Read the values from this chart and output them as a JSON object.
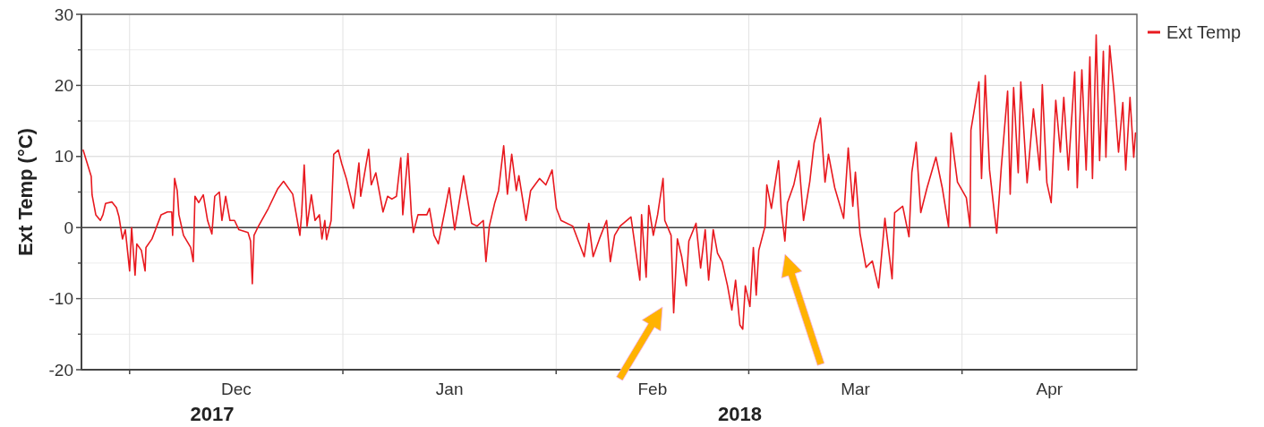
{
  "chart_data": {
    "type": "line",
    "ylabel": "Ext Temp (°C)",
    "x": [
      "2017-11-24T06:00",
      "2017-11-25T10:00",
      "2017-11-25T13:00",
      "2017-11-26T02:00",
      "2017-11-26T18:00",
      "2017-11-27T03:00",
      "2017-11-27T12:00",
      "2017-11-28T10:00",
      "2017-11-29T02:00",
      "2017-11-29T11:00",
      "2017-11-29T23:00",
      "2017-11-30T09:00",
      "2017-12-01T00:00",
      "2017-12-01T07:00",
      "2017-12-01T19:00",
      "2017-12-02T01:00",
      "2017-12-02T17:00",
      "2017-12-03T06:00",
      "2017-12-03T09:00",
      "2017-12-04T06:00",
      "2017-12-05T14:00",
      "2017-12-06T12:00",
      "2017-12-07T03:00",
      "2017-12-07T06:00",
      "2017-12-07T13:00",
      "2017-12-07T22:00",
      "2017-12-08T04:00",
      "2017-12-08T20:00",
      "2017-12-09T21:00",
      "2017-12-10T06:00",
      "2017-12-10T12:00",
      "2017-12-11T01:00",
      "2017-12-11T17:00",
      "2017-12-12T08:00",
      "2017-12-12T23:00",
      "2017-12-13T09:00",
      "2017-12-14T01:00",
      "2017-12-14T10:00",
      "2017-12-14T23:00",
      "2017-12-15T14:00",
      "2017-12-16T06:00",
      "2017-12-16T21:00",
      "2017-12-18T05:00",
      "2017-12-18T14:00",
      "2017-12-18T20:00",
      "2017-12-19T02:00",
      "2017-12-19T15:00",
      "2017-12-21T04:00",
      "2017-12-22T12:00",
      "2017-12-23T09:00",
      "2017-12-24T17:00",
      "2017-12-25T18:00",
      "2017-12-26T00:00",
      "2017-12-26T09:00",
      "2017-12-26T19:00",
      "2017-12-27T10:00",
      "2017-12-27T23:00",
      "2017-12-28T14:00",
      "2017-12-28T23:00",
      "2017-12-29T09:00",
      "2017-12-29T15:00",
      "2017-12-30T07:00",
      "2017-12-30T16:00",
      "2017-12-31T08:00",
      "2017-12-31T20:00",
      "2018-01-01T12:00",
      "2018-01-02T13:00",
      "2018-01-03T08:00",
      "2018-01-03T14:00",
      "2018-01-04T18:00",
      "2018-01-05T03:00",
      "2018-01-05T19:00",
      "2018-01-06T20:00",
      "2018-01-07T12:00",
      "2018-01-08T03:00",
      "2018-01-08T19:00",
      "2018-01-09T10:00",
      "2018-01-09T17:00",
      "2018-01-10T11:00",
      "2018-01-10T23:00",
      "2018-01-11T06:00",
      "2018-01-11T22:00",
      "2018-01-13T05:00",
      "2018-01-13T14:00",
      "2018-01-14T06:00",
      "2018-01-14T21:00",
      "2018-01-15T19:00",
      "2018-01-16T11:00",
      "2018-01-17T06:00",
      "2018-01-18T13:00",
      "2018-01-19T17:00",
      "2018-01-20T12:00",
      "2018-01-21T10:00",
      "2018-01-21T19:00",
      "2018-01-22T07:00",
      "2018-01-23T02:00",
      "2018-01-23T15:00",
      "2018-01-24T09:00",
      "2018-01-24T22:00",
      "2018-01-25T13:00",
      "2018-01-26T05:00",
      "2018-01-26T14:00",
      "2018-01-27T15:00",
      "2018-01-28T07:00",
      "2018-01-29T14:00",
      "2018-01-30T12:00",
      "2018-01-31T10:00",
      "2018-02-01T01:00",
      "2018-02-01T17:00",
      "2018-02-03T10:00",
      "2018-02-05T02:00",
      "2018-02-05T18:00",
      "2018-02-06T09:00",
      "2018-02-07T07:00",
      "2018-02-08T08:00",
      "2018-02-08T21:00",
      "2018-02-09T12:00",
      "2018-02-10T07:00",
      "2018-02-11T21:00",
      "2018-02-12T18:00",
      "2018-02-13T04:00",
      "2018-02-13T10:00",
      "2018-02-14T02:00",
      "2018-02-14T11:00",
      "2018-02-15T03:00",
      "2018-02-15T18:00",
      "2018-02-16T13:00",
      "2018-02-16T19:00",
      "2018-02-17T17:00",
      "2018-02-18T02:00",
      "2018-02-18T15:00",
      "2018-02-19T06:00",
      "2018-02-19T22:00",
      "2018-02-20T07:00",
      "2018-02-21T08:00",
      "2018-02-22T00:00",
      "2018-02-22T16:00",
      "2018-02-23T04:00",
      "2018-02-23T20:00",
      "2018-02-24T11:00",
      "2018-02-25T03:00",
      "2018-02-25T22:00",
      "2018-02-26T13:00",
      "2018-02-27T02:00",
      "2018-02-27T17:00",
      "2018-02-28T03:00",
      "2018-02-28T12:00",
      "2018-03-01T04:00",
      "2018-03-01T16:00",
      "2018-03-02T02:00",
      "2018-03-02T11:00",
      "2018-03-03T09:00",
      "2018-03-03T15:00",
      "2018-03-04T07:00",
      "2018-03-05T08:00",
      "2018-03-05T17:00",
      "2018-03-06T06:00",
      "2018-03-06T15:00",
      "2018-03-07T13:00",
      "2018-03-08T07:00",
      "2018-03-08T23:00",
      "2018-03-09T21:00",
      "2018-03-10T12:00",
      "2018-03-11T10:00",
      "2018-03-12T02:00",
      "2018-03-12T14:00",
      "2018-03-13T12:00",
      "2018-03-14T19:00",
      "2018-03-15T11:00",
      "2018-03-16T03:00",
      "2018-03-16T12:00",
      "2018-03-17T04:00",
      "2018-03-18T01:00",
      "2018-03-18T23:00",
      "2018-03-19T21:00",
      "2018-03-20T19:00",
      "2018-03-21T20:00",
      "2018-03-22T05:00",
      "2018-03-23T09:00",
      "2018-03-24T07:00",
      "2018-03-24T17:00",
      "2018-03-25T08:00",
      "2018-03-26T00:00",
      "2018-03-26T22:00",
      "2018-03-28T05:00",
      "2018-03-29T03:00",
      "2018-03-30T01:00",
      "2018-03-30T10:00",
      "2018-03-31T08:00",
      "2018-04-01T15:00",
      "2018-04-02T04:00",
      "2018-04-02T07:00",
      "2018-04-03T11:00",
      "2018-04-03T20:00",
      "2018-04-04T09:00",
      "2018-04-05T00:00",
      "2018-04-06T01:00",
      "2018-04-06T17:00",
      "2018-04-07T15:00",
      "2018-04-08T00:00",
      "2018-04-08T12:00",
      "2018-04-09T04:00",
      "2018-04-09T13:00",
      "2018-04-10T11:00",
      "2018-04-11T09:00",
      "2018-04-12T07:00",
      "2018-04-12T16:00",
      "2018-04-13T08:00",
      "2018-04-13T23:00",
      "2018-04-14T15:00",
      "2018-04-15T07:00",
      "2018-04-15T19:00",
      "2018-04-16T11:00",
      "2018-04-17T09:00",
      "2018-04-17T18:00",
      "2018-04-18T10:00",
      "2018-04-19T01:00",
      "2018-04-19T14:00",
      "2018-04-19T23:00",
      "2018-04-20T12:00",
      "2018-04-21T00:00",
      "2018-04-21T13:00",
      "2018-04-21T22:00",
      "2018-04-22T11:00",
      "2018-04-23T02:00",
      "2018-04-23T18:00",
      "2018-04-24T09:00",
      "2018-04-24T19:00",
      "2018-04-25T10:00",
      "2018-04-25T23:00",
      "2018-04-26T05:00"
    ],
    "series": [
      {
        "name": "Ext Temp",
        "color": "#e8191f",
        "values": [
          10.9,
          7.2,
          4.6,
          1.8,
          1.0,
          1.8,
          3.4,
          3.6,
          2.8,
          1.5,
          -1.6,
          -0.3,
          -6.1,
          0,
          -6.7,
          -2.3,
          -3.2,
          -6.1,
          -2.8,
          -1.6,
          1.8,
          2.2,
          2.2,
          -1.1,
          6.9,
          5.2,
          1.8,
          -1.1,
          -2.8,
          -4.8,
          4.4,
          3.5,
          4.6,
          1.0,
          -0.9,
          4.4,
          5.0,
          1.0,
          4.4,
          1.0,
          1.0,
          -0.3,
          -0.7,
          -1.9,
          -7.9,
          -1.1,
          0,
          2.7,
          5.4,
          6.5,
          4.7,
          -1.1,
          1.8,
          8.8,
          0.2,
          4.6,
          1.0,
          1.8,
          -1.6,
          1.0,
          -1.7,
          1.0,
          10.3,
          10.9,
          9.0,
          6.9,
          2.7,
          9.1,
          4.4,
          11.0,
          6.0,
          7.7,
          2.2,
          4.4,
          4.0,
          4.4,
          9.8,
          1.8,
          10.4,
          1.8,
          -0.7,
          1.8,
          1.8,
          2.7,
          -1.1,
          -2.3,
          2.2,
          5.6,
          -0.3,
          7.3,
          0.6,
          0.2,
          1.0,
          -4.8,
          0.2,
          3.5,
          5.2,
          11.5,
          4.7,
          10.3,
          5.2,
          7.3,
          1.0,
          5.2,
          6.9,
          6.0,
          8.1,
          2.7,
          1.0,
          0.2,
          -4.1,
          0.6,
          -4.1,
          -1.6,
          1.0,
          -4.8,
          -1.1,
          0.2,
          1.5,
          -4.5,
          -7.4,
          1.8,
          -7.0,
          3.1,
          -1.1,
          1.8,
          6.9,
          1.0,
          -1.1,
          -12.0,
          -1.6,
          -4.1,
          -8.2,
          -1.9,
          0.6,
          -5.7,
          -0.3,
          -7.4,
          -0.3,
          -3.6,
          -4.8,
          -8.2,
          -11.6,
          -7.4,
          -13.7,
          -14.3,
          -8.2,
          -11.1,
          -2.8,
          -9.5,
          -3.2,
          0.2,
          6.0,
          2.7,
          9.4,
          2.7,
          -1.9,
          3.5,
          6.0,
          9.4,
          1.0,
          6.5,
          11.9,
          15.4,
          6.4,
          10.3,
          5.6,
          1.3,
          11.2,
          3.0,
          7.8,
          -0.8,
          -5.6,
          -4.7,
          -8.5,
          1.3,
          -7.2,
          2.1,
          3.0,
          -1.3,
          7.8,
          12.0,
          2.1,
          5.6,
          9.9,
          5.6,
          0.1,
          13.3,
          6.4,
          4.2,
          0.1,
          13.7,
          20.5,
          6.9,
          21.4,
          8.1,
          -0.8,
          8.5,
          19.2,
          4.7,
          19.7,
          7.7,
          20.5,
          6.3,
          16.7,
          8.1,
          20.1,
          6.3,
          3.5,
          17.9,
          10.6,
          18.3,
          8.1,
          21.9,
          5.6,
          22.2,
          8.1,
          24.0,
          6.9,
          27.1,
          9.4,
          24.8,
          9.9,
          25.6,
          19.2,
          10.6,
          17.6,
          8.1,
          18.3,
          9.9,
          13.3
        ]
      }
    ],
    "xlim": [
      "2017-11-24",
      "2018-04-26T10:00"
    ],
    "ylim": [
      -20,
      30
    ],
    "xticks": [
      {
        "value": "2017-12-01",
        "label": null
      },
      {
        "value": "2018-01-01",
        "label": null
      },
      {
        "value": "2018-02-01",
        "label": null
      },
      {
        "value": "2018-03-01",
        "label": null
      },
      {
        "value": "2018-04-01",
        "label": null
      },
      {
        "value": "2017-12-16T12:00",
        "label": "Dec"
      },
      {
        "value": "2018-01-16T12:00",
        "label": "Jan"
      },
      {
        "value": "2018-02-15",
        "label": "Feb"
      },
      {
        "value": "2018-03-16T12:00",
        "label": "Mar"
      },
      {
        "value": "2018-04-13T17:00",
        "label": "Apr"
      }
    ],
    "yticks": [
      -20,
      {
        "value": -15,
        "label": null
      },
      -10,
      {
        "value": -5,
        "label": null
      },
      0,
      {
        "value": 5,
        "label": null
      },
      10,
      {
        "value": 15,
        "label": null
      },
      20,
      {
        "value": 25,
        "label": null
      },
      30
    ],
    "annotations": [
      "2017",
      "2018"
    ],
    "grid": true,
    "legend": "top right",
    "ref_lines": [
      {
        "axis": "y",
        "value": 0,
        "color": "#404040"
      }
    ]
  }
}
